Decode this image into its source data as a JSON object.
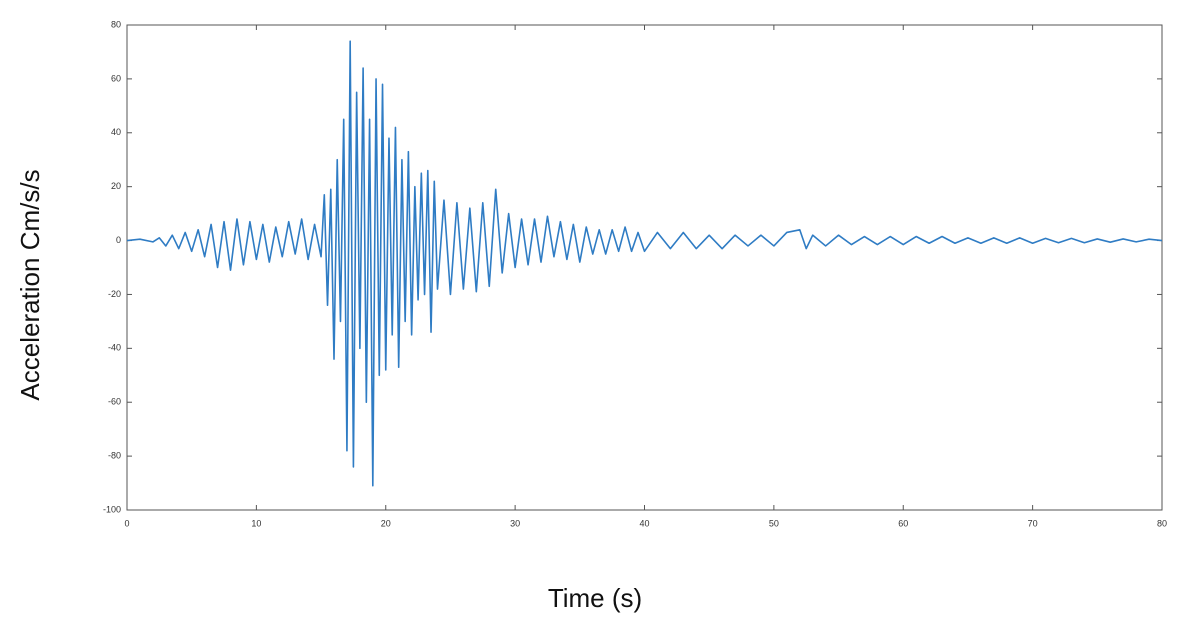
{
  "chart_data": {
    "type": "line",
    "x_label": "Time (s)",
    "y_label": "Acceleration Cm/s/s",
    "xlim": [
      0,
      80
    ],
    "xticks": [
      0,
      10,
      20,
      30,
      40,
      50,
      60,
      70,
      80
    ],
    "ylim": [
      -100,
      80
    ],
    "yticks": [
      80,
      60,
      40,
      20,
      0,
      -20,
      -40,
      -60,
      -80,
      -100
    ],
    "color": "#2f7cc4",
    "x": [
      0,
      1,
      2,
      2.5,
      3,
      3.5,
      4,
      4.5,
      5,
      5.5,
      6,
      6.5,
      7,
      7.5,
      8,
      8.5,
      9,
      9.5,
      10,
      10.5,
      11,
      11.5,
      12,
      12.5,
      13,
      13.5,
      14,
      14.5,
      15,
      15.25,
      15.5,
      15.75,
      16,
      16.25,
      16.5,
      16.75,
      17,
      17.25,
      17.5,
      17.75,
      18,
      18.25,
      18.5,
      18.75,
      19,
      19.25,
      19.5,
      19.75,
      20,
      20.25,
      20.5,
      20.75,
      21,
      21.25,
      21.5,
      21.75,
      22,
      22.25,
      22.5,
      22.75,
      23,
      23.25,
      23.5,
      23.75,
      24,
      24.5,
      25,
      25.5,
      26,
      26.5,
      27,
      27.5,
      28,
      28.5,
      29,
      29.5,
      30,
      30.5,
      31,
      31.5,
      32,
      32.5,
      33,
      33.5,
      34,
      34.5,
      35,
      35.5,
      36,
      36.5,
      37,
      37.5,
      38,
      38.5,
      39,
      39.5,
      40,
      41,
      42,
      43,
      44,
      45,
      46,
      47,
      48,
      49,
      50,
      51,
      52,
      52.5,
      53,
      54,
      55,
      56,
      57,
      58,
      59,
      60,
      61,
      62,
      63,
      64,
      65,
      66,
      67,
      68,
      69,
      70,
      71,
      72,
      73,
      74,
      75,
      76,
      77,
      78,
      79,
      80
    ],
    "values": [
      0,
      0.5,
      -0.5,
      1,
      -2,
      2,
      -3,
      3,
      -4,
      4,
      -6,
      6,
      -10,
      7,
      -11,
      8,
      -9,
      7,
      -7,
      6,
      -8,
      5,
      -6,
      7,
      -5,
      8,
      -7,
      6,
      -6,
      17,
      -24,
      19,
      -44,
      30,
      -30,
      45,
      -78,
      74,
      -84,
      55,
      -40,
      64,
      -60,
      45,
      -91,
      60,
      -50,
      58,
      -48,
      38,
      -35,
      42,
      -47,
      30,
      -30,
      33,
      -35,
      20,
      -22,
      25,
      -20,
      26,
      -34,
      22,
      -18,
      15,
      -20,
      14,
      -18,
      12,
      -19,
      14,
      -17,
      19,
      -12,
      10,
      -10,
      8,
      -9,
      8,
      -8,
      9,
      -6,
      7,
      -7,
      6,
      -8,
      5,
      -5,
      4,
      -5,
      4,
      -4,
      5,
      -4,
      3,
      -4,
      3,
      -3,
      3,
      -3,
      2,
      -3,
      2,
      -2,
      2,
      -2,
      3,
      4,
      -3,
      2,
      -2,
      2,
      -1.5,
      1.5,
      -1.5,
      1.5,
      -1.5,
      1.5,
      -1,
      1.5,
      -1,
      1,
      -1,
      1,
      -1,
      1,
      -1,
      0.8,
      -0.8,
      0.8,
      -0.8,
      0.6,
      -0.6,
      0.6,
      -0.5,
      0.5,
      0
    ]
  }
}
